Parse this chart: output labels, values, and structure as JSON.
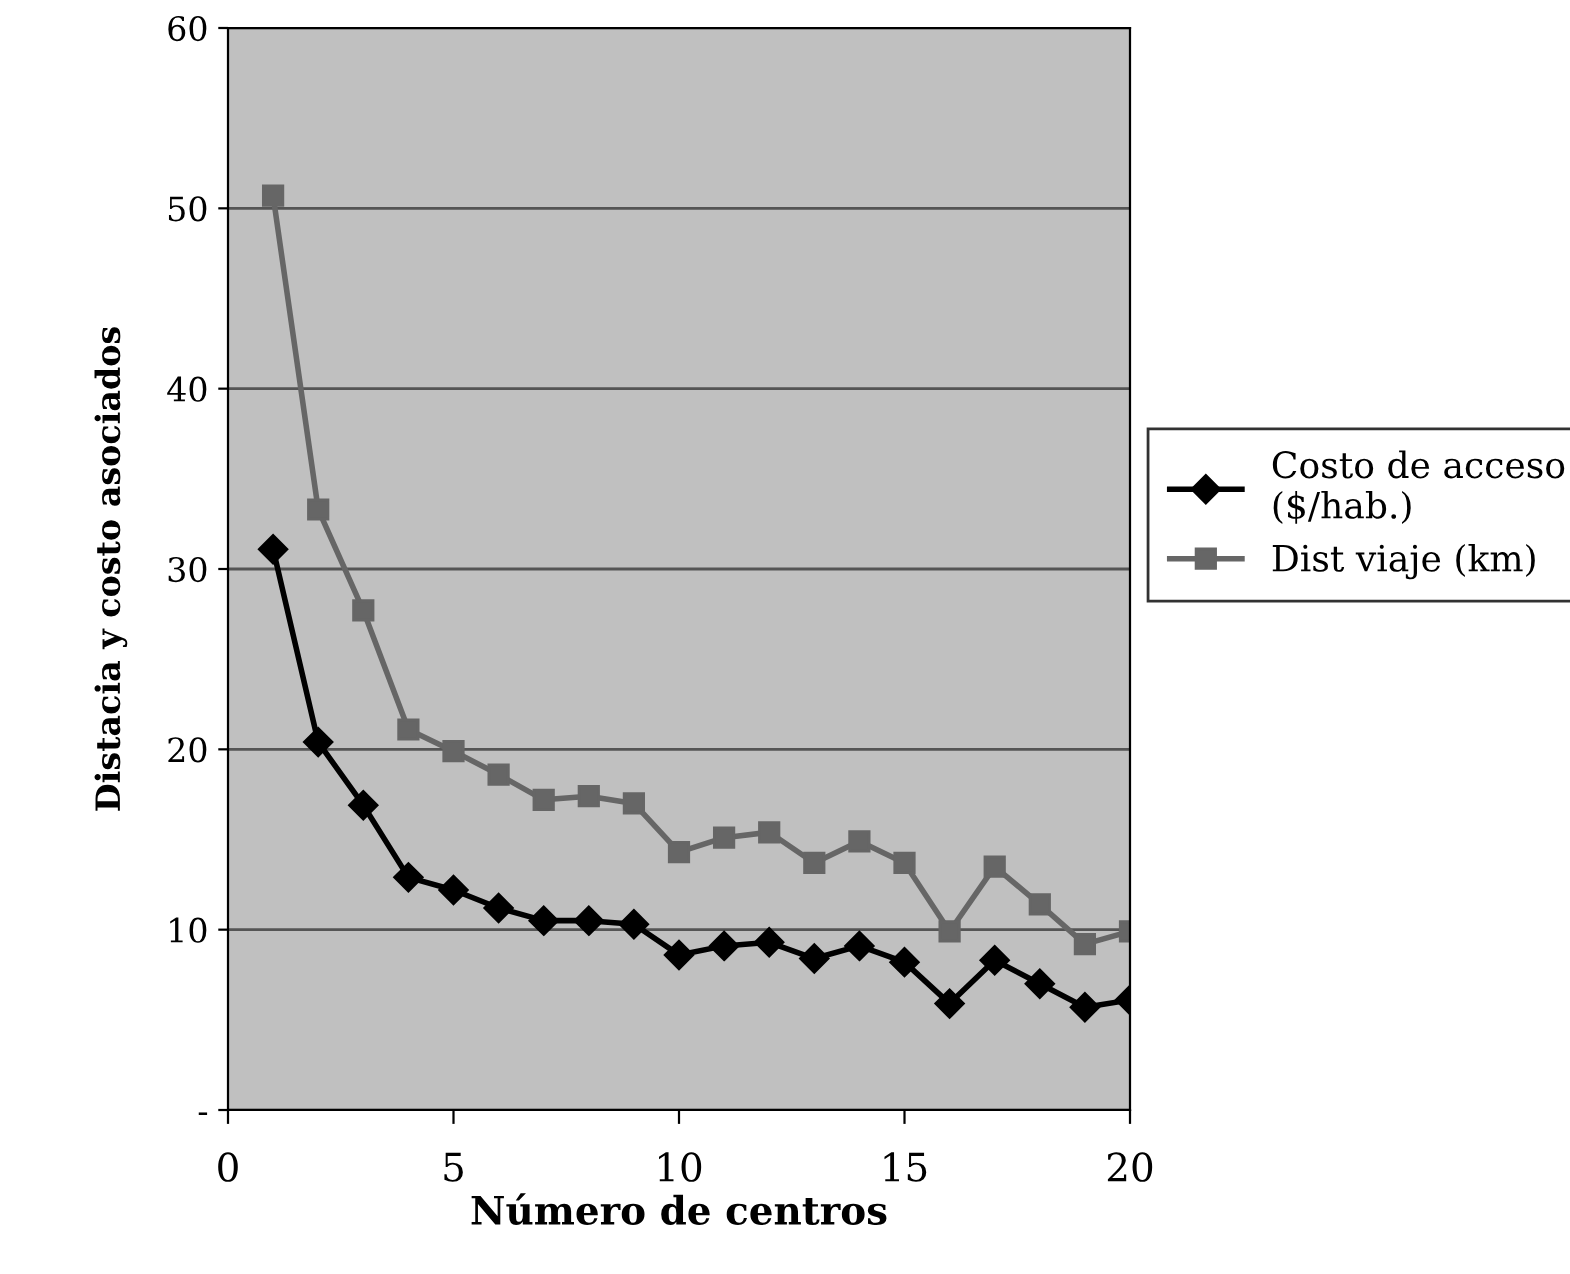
{
  "chart_data": {
    "type": "line",
    "xlabel": "Número de centros",
    "ylabel": "Distacia y costo asociados",
    "x": [
      1,
      2,
      3,
      4,
      5,
      6,
      7,
      8,
      9,
      10,
      11,
      12,
      13,
      14,
      15,
      16,
      17,
      18,
      19,
      20
    ],
    "series": [
      {
        "name": "Costo de acceso\n($/hab.)",
        "color": "#000000",
        "marker": "diamond",
        "values": [
          31.1,
          20.4,
          16.9,
          12.9,
          12.2,
          11.2,
          10.5,
          10.5,
          10.3,
          8.6,
          9.1,
          9.3,
          8.4,
          9.1,
          8.2,
          5.9,
          8.3,
          7.0,
          5.7,
          6.1
        ]
      },
      {
        "name": "Dist viaje (km)",
        "color": "#666666",
        "marker": "square",
        "values": [
          50.7,
          33.3,
          27.7,
          21.1,
          19.9,
          18.6,
          17.2,
          17.4,
          17.0,
          14.3,
          15.1,
          15.4,
          13.7,
          14.9,
          13.7,
          9.9,
          13.5,
          11.4,
          9.2,
          9.9
        ]
      }
    ],
    "xlim": [
      0,
      20
    ],
    "xticks": [
      0,
      5,
      10,
      15,
      20
    ],
    "ylim": [
      0,
      60
    ],
    "yticks": [
      {
        "value": 0,
        "label": "-"
      },
      10,
      20,
      30,
      40,
      50,
      60
    ],
    "grid": "y",
    "legend": "right"
  }
}
